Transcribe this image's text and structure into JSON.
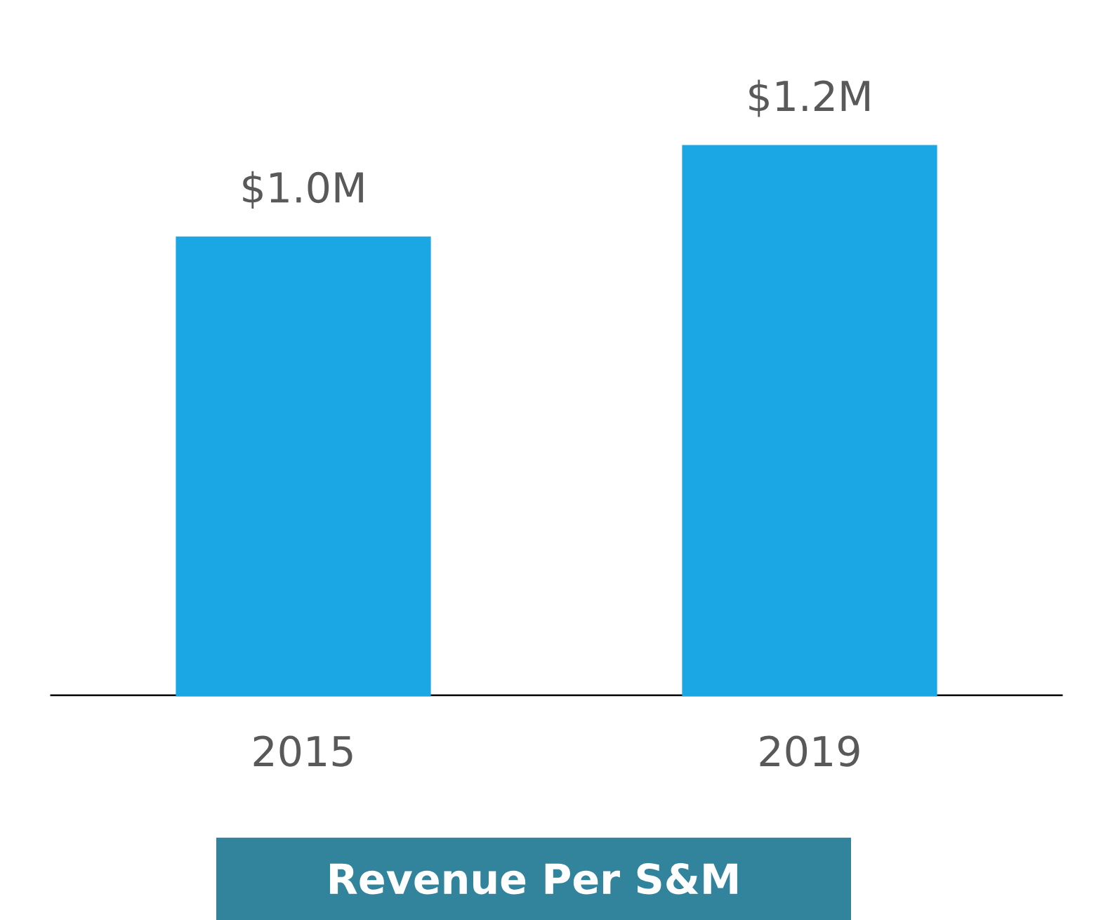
{
  "chart_data": {
    "type": "bar",
    "title": "Revenue Per S&M",
    "categories": [
      "2015",
      "2019"
    ],
    "values": [
      1.0,
      1.2
    ],
    "value_labels": [
      "$1.0M",
      "$1.2M"
    ],
    "color": "#1aa7e4",
    "tick_labels": "x"
  }
}
